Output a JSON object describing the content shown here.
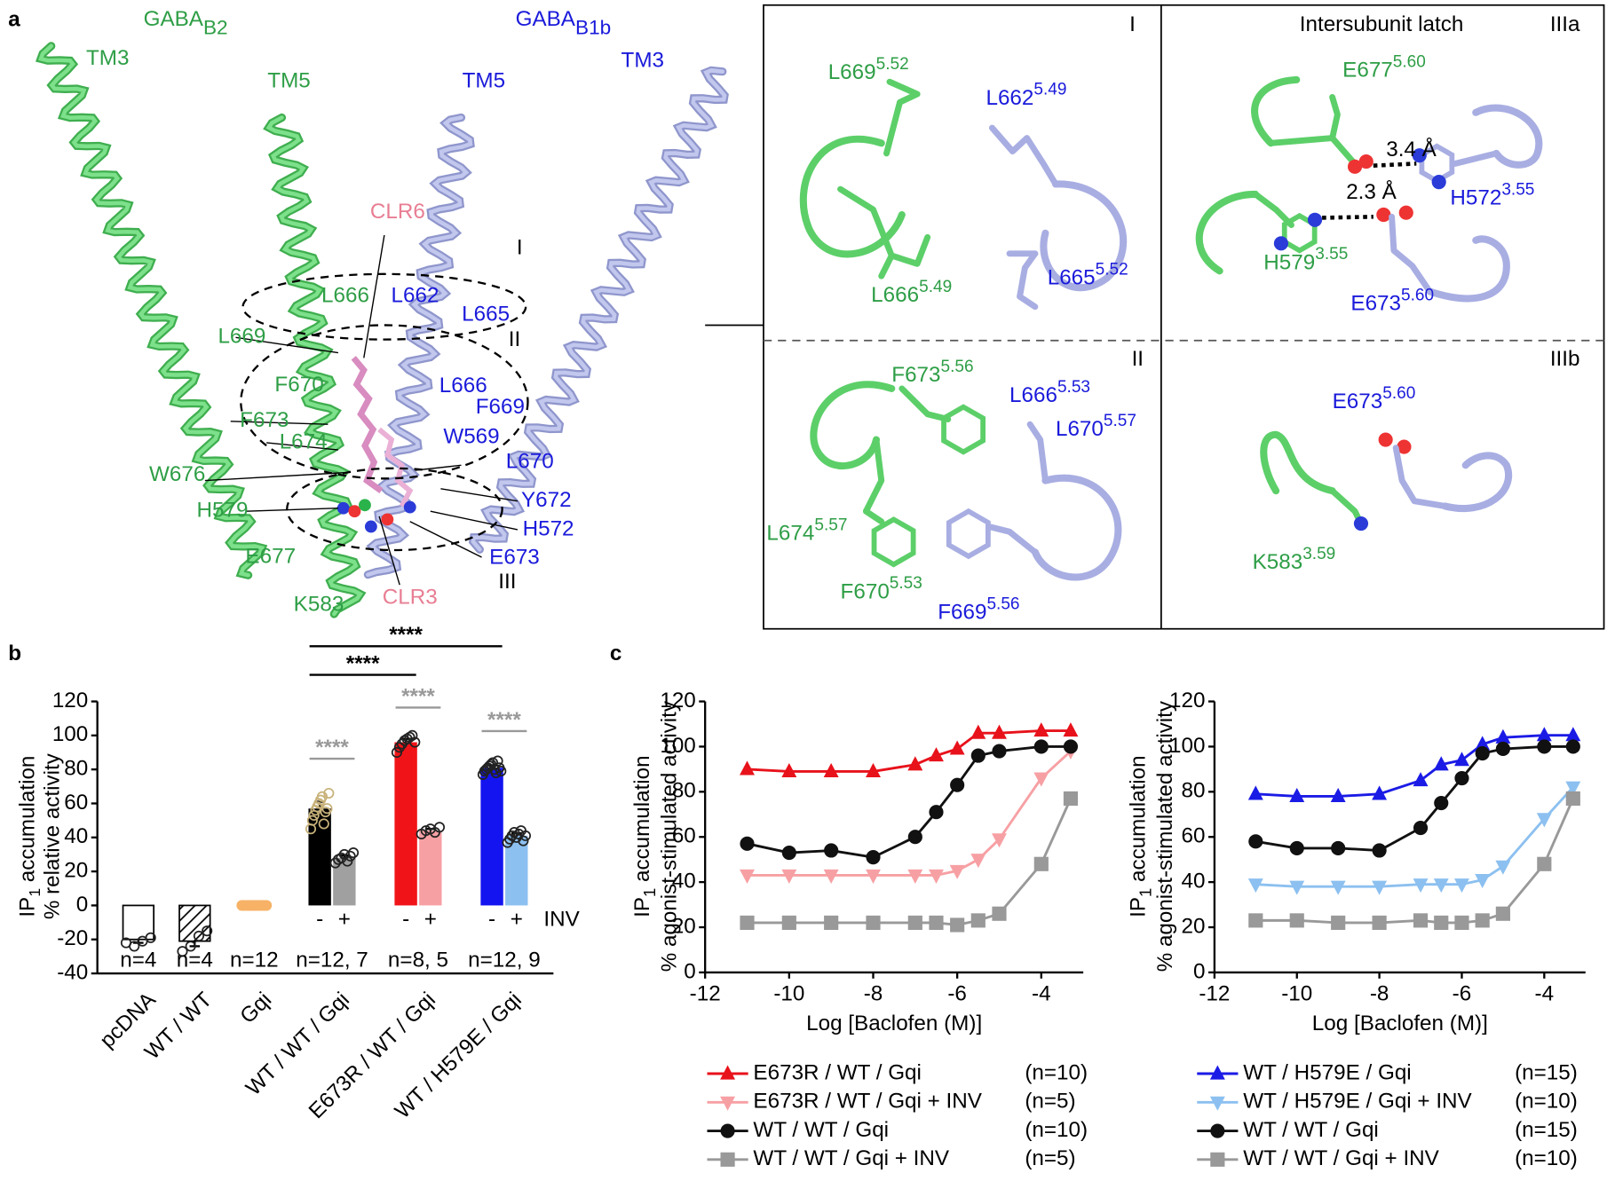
{
  "panel_labels": [
    "a",
    "b",
    "c"
  ],
  "panel_a": {
    "subunits": [
      {
        "text": "GABA",
        "sub": "B2"
      },
      {
        "text": "GABA",
        "sub": "B1b"
      }
    ],
    "helices": [
      "TM3",
      "TM5",
      "TM5",
      "TM3"
    ],
    "ligands": [
      "CLR6",
      "CLR3"
    ],
    "sites": [
      "I",
      "II",
      "III"
    ],
    "gb2_residues": [
      "L666",
      "L669",
      "F670",
      "F673",
      "L674",
      "W676",
      "H579",
      "E677",
      "K583"
    ],
    "gb1_residues": [
      "L662",
      "L665",
      "L666",
      "F669",
      "W569",
      "L670",
      "Y672",
      "H572",
      "E673"
    ]
  },
  "panel_I": {
    "label": "I",
    "residues": [
      {
        "text": "L669",
        "sup": "5.52"
      },
      {
        "text": "L662",
        "sup": "5.49"
      },
      {
        "text": "L666",
        "sup": "5.49"
      },
      {
        "text": "L665",
        "sup": "5.52"
      }
    ]
  },
  "panel_IIIa": {
    "title": "Intersubunit latch",
    "label": "IIIa",
    "distances": [
      "3.4 Å",
      "2.3 Å"
    ],
    "residues": [
      {
        "text": "E677",
        "sup": "5.60"
      },
      {
        "text": "H572",
        "sup": "3.55"
      },
      {
        "text": "H579",
        "sup": "3.55"
      },
      {
        "text": "E673",
        "sup": "5.60"
      }
    ]
  },
  "panel_II": {
    "label": "II",
    "residues": [
      {
        "text": "F673",
        "sup": "5.56"
      },
      {
        "text": "L666",
        "sup": "5.53"
      },
      {
        "text": "L670",
        "sup": "5.57"
      },
      {
        "text": "L674",
        "sup": "5.57"
      },
      {
        "text": "F670",
        "sup": "5.53"
      },
      {
        "text": "F669",
        "sup": "5.56"
      }
    ]
  },
  "panel_IIIb": {
    "label": "IIIb",
    "residues": [
      {
        "text": "E673",
        "sup": "5.60"
      },
      {
        "text": "K583",
        "sup": "3.59"
      }
    ]
  },
  "chart_data": [
    {
      "type": "bar",
      "ylabel": {
        "text": "IP",
        "sub": "1",
        "rest": " accumulation"
      },
      "ylabel2": "% relative activity",
      "categories": [
        "pcDNA",
        "WT / WT",
        "Gqi",
        "WT / WT / Gqi",
        "E673R / WT / Gqi",
        "WT / H579E / Gqi"
      ],
      "ylim": [
        -40,
        120
      ],
      "yticks": [
        -40,
        -20,
        0,
        20,
        40,
        60,
        80,
        100,
        120
      ],
      "series": [
        {
          "name": "-",
          "colors": [
            "#ffffff",
            "#ffffff",
            "#f7b267",
            "#000000",
            "#f01418",
            "#1414f0"
          ],
          "hatched": [
            false,
            true,
            false,
            false,
            false,
            false
          ],
          "values": [
            -20,
            -21,
            0,
            57,
            96,
            81
          ],
          "errors": [
            2,
            3,
            0.5,
            4,
            2,
            1.5
          ],
          "point_colors": [
            "#222222",
            "#222222",
            "#f7b267",
            "#c8b27a",
            "#222222",
            "#222222"
          ],
          "points": [
            [
              -22,
              -24,
              -21,
              -19
            ],
            [
              -27,
              -24,
              -18,
              -15
            ],
            [
              0,
              0,
              0,
              0,
              0,
              0,
              0,
              0,
              0,
              0,
              0,
              0
            ],
            [
              45,
              50,
              53,
              56,
              58,
              60,
              62,
              64,
              48,
              55,
              57,
              66
            ],
            [
              90,
              93,
              95,
              97,
              98,
              99,
              100,
              96
            ],
            [
              77,
              79,
              80,
              81,
              82,
              83,
              84,
              80,
              78,
              85,
              81,
              79
            ]
          ]
        },
        {
          "name": "+",
          "colors": [
            null,
            null,
            null,
            "#a0a0a0",
            "#f7a0a4",
            "#8cc0f0"
          ],
          "hatched": [
            false,
            false,
            false,
            false,
            false,
            false
          ],
          "values": [
            null,
            null,
            null,
            28,
            44,
            41
          ],
          "errors": [
            null,
            null,
            null,
            1.5,
            1,
            1.5
          ],
          "point_colors": [
            null,
            null,
            null,
            "#222222",
            "#222222",
            "#222222"
          ],
          "points": [
            null,
            null,
            null,
            [
              25,
              27,
              28,
              30,
              26,
              29,
              31
            ],
            [
              42,
              44,
              45,
              43,
              46
            ],
            [
              37,
              39,
              41,
              43,
              40,
              42,
              44,
              38,
              41
            ]
          ]
        }
      ],
      "inv_label": "INV",
      "n_labels": [
        "n=4",
        "n=4",
        "n=12",
        "n=12, 7",
        "n=8, 5",
        "n=12, 9"
      ],
      "significance": [
        "****",
        "****",
        "****",
        "****",
        "****"
      ]
    },
    {
      "type": "line",
      "xlabel": "Log [Baclofen (M)]",
      "ylabel": {
        "text": "IP",
        "sub": "1",
        "rest": " accumulation"
      },
      "ylabel2": "% agonist-stimulated activity",
      "x": [
        -11,
        -10,
        -9,
        -8,
        -7,
        -6.5,
        -6,
        -5.5,
        -5,
        -4,
        -3.3
      ],
      "xlim": [
        -12,
        -3
      ],
      "xticks": [
        -12,
        -10,
        -8,
        -6,
        -4
      ],
      "ylim": [
        0,
        120
      ],
      "yticks": [
        0,
        20,
        40,
        60,
        80,
        100,
        120
      ],
      "series": [
        {
          "name": "E673R / WT / Gqi",
          "n": "(n=10)",
          "color": "#e8121b",
          "marker": "triangle-up",
          "values": [
            90,
            89,
            89,
            89,
            92,
            96,
            99,
            106,
            106,
            107,
            107
          ]
        },
        {
          "name": "E673R / WT / Gqi + INV",
          "n": "(n=5)",
          "color": "#f7a0a4",
          "marker": "triangle-down",
          "values": [
            43,
            43,
            43,
            43,
            43,
            43,
            45,
            50,
            59,
            86,
            98
          ]
        },
        {
          "name": "WT / WT / Gqi",
          "n": "(n=10)",
          "color": "#111111",
          "marker": "circle",
          "values": [
            57,
            53,
            54,
            51,
            60,
            71,
            83,
            96,
            98,
            100,
            100
          ]
        },
        {
          "name": "WT / WT / Gqi + INV",
          "n": "(n=5)",
          "color": "#999999",
          "marker": "square",
          "values": [
            22,
            22,
            22,
            22,
            22,
            22,
            21,
            23,
            26,
            48,
            77
          ]
        }
      ]
    },
    {
      "type": "line",
      "xlabel": "Log [Baclofen (M)]",
      "ylabel": {
        "text": "IP",
        "sub": "1",
        "rest": " accumulation"
      },
      "ylabel2": "% agonist-stimulated activity",
      "x": [
        -11,
        -10,
        -9,
        -8,
        -7,
        -6.5,
        -6,
        -5.5,
        -5,
        -4,
        -3.3
      ],
      "xlim": [
        -12,
        -3
      ],
      "xticks": [
        -12,
        -10,
        -8,
        -6,
        -4
      ],
      "ylim": [
        0,
        120
      ],
      "yticks": [
        0,
        20,
        40,
        60,
        80,
        100,
        120
      ],
      "series": [
        {
          "name": "WT / H579E / Gqi",
          "n": "(n=15)",
          "color": "#1b1be6",
          "marker": "triangle-up",
          "values": [
            79,
            78,
            78,
            79,
            85,
            92,
            94,
            101,
            104,
            105,
            105
          ]
        },
        {
          "name": "WT / H579E / Gqi + INV",
          "n": "(n=10)",
          "color": "#8cc0f0",
          "marker": "triangle-down",
          "values": [
            39,
            38,
            38,
            38,
            39,
            39,
            39,
            41,
            47,
            68,
            82
          ]
        },
        {
          "name": "WT / WT / Gqi",
          "n": "(n=15)",
          "color": "#111111",
          "marker": "circle",
          "values": [
            58,
            55,
            55,
            54,
            64,
            75,
            86,
            97,
            99,
            100,
            100
          ]
        },
        {
          "name": "WT / WT / Gqi + INV",
          "n": "(n=10)",
          "color": "#999999",
          "marker": "square",
          "values": [
            23,
            23,
            22,
            22,
            23,
            22,
            22,
            23,
            26,
            48,
            77
          ]
        }
      ]
    }
  ]
}
